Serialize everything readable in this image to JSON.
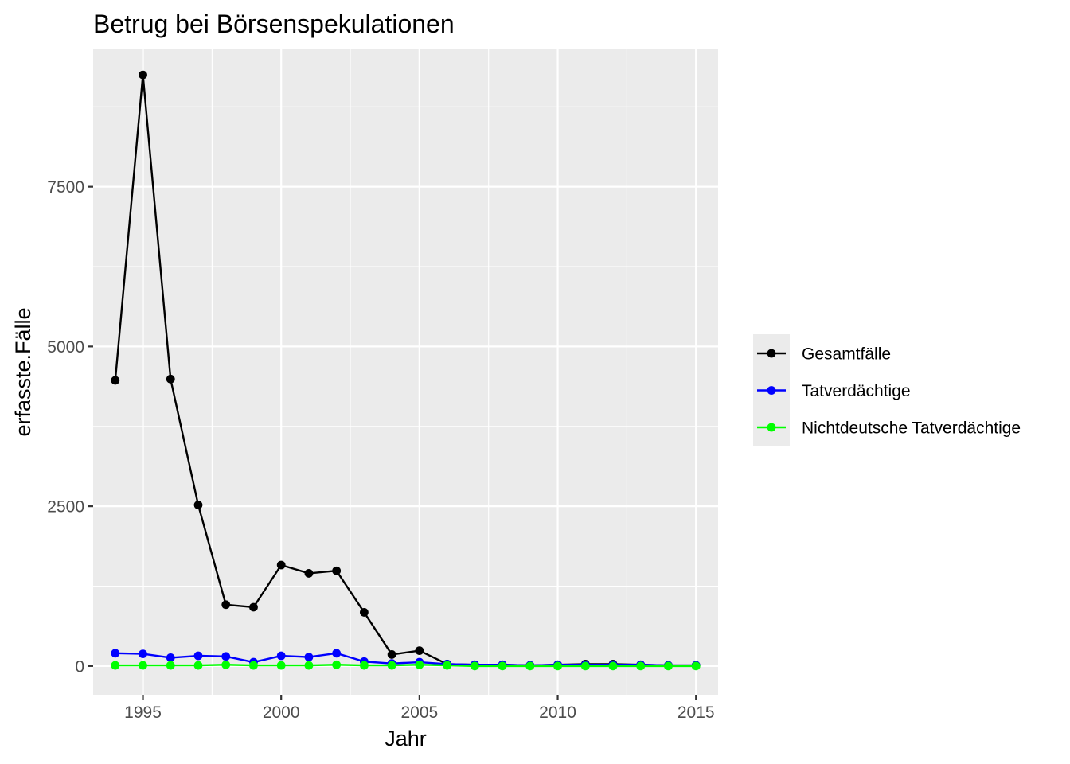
{
  "chart_data": {
    "type": "line",
    "title": "Betrug bei Börsenspekulationen",
    "xlabel": "Jahr",
    "ylabel": "erfasste.Fälle",
    "xlim": [
      1993.2,
      2015.8
    ],
    "ylim": [
      -450,
      9650
    ],
    "x_ticks": [
      1995,
      2000,
      2005,
      2010,
      2015
    ],
    "y_ticks": [
      0,
      2500,
      5000,
      7500
    ],
    "x_minor": [
      1997.5,
      2002.5,
      2007.5,
      2012.5
    ],
    "y_minor": [
      1250,
      3750,
      6250,
      8750
    ],
    "grid": true,
    "background": "#ebebeb",
    "legend_position": "right",
    "x": [
      1994,
      1995,
      1996,
      1997,
      1998,
      1999,
      2000,
      2001,
      2002,
      2003,
      2004,
      2005,
      2006,
      2007,
      2008,
      2009,
      2010,
      2011,
      2012,
      2013,
      2014,
      2015
    ],
    "series": [
      {
        "name": "Gesamtfälle",
        "color": "#000000",
        "values": [
          4470,
          9250,
          4490,
          2520,
          960,
          920,
          1580,
          1450,
          1490,
          840,
          180,
          240,
          30,
          20,
          20,
          10,
          20,
          30,
          30,
          20,
          10,
          10
        ]
      },
      {
        "name": "Tatverdächtige",
        "color": "#0000ff",
        "values": [
          200,
          190,
          130,
          160,
          150,
          60,
          160,
          140,
          200,
          70,
          40,
          60,
          30,
          20,
          20,
          10,
          20,
          20,
          20,
          20,
          10,
          10
        ]
      },
      {
        "name": "Nichtdeutsche Tatverdächtige",
        "color": "#00ff00",
        "values": [
          10,
          10,
          10,
          10,
          20,
          10,
          10,
          10,
          20,
          10,
          10,
          20,
          10,
          0,
          0,
          0,
          0,
          0,
          0,
          0,
          0,
          0
        ]
      }
    ]
  }
}
